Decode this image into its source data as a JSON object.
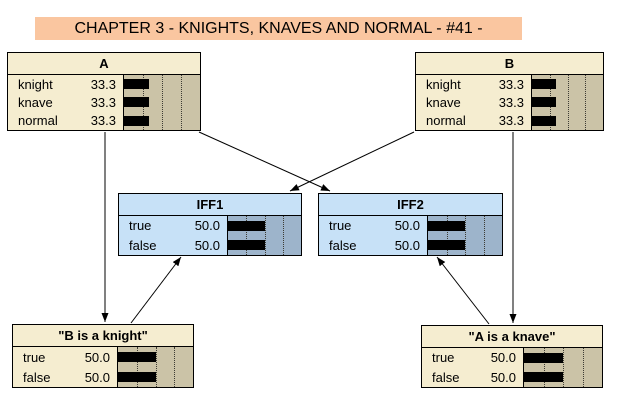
{
  "title": {
    "text": "CHAPTER 3 - KNIGHTS, KNAVES AND NORMAL - #41 -"
  },
  "colors": {
    "title_bg": "#FAC6A0",
    "node_bg": "#F5EDD0",
    "node_bar_area_bg": "#CBC3A7",
    "iff_node_bg": "#C7E1F7",
    "iff_bar_area_bg": "#9DB4CB",
    "bar": "#000000",
    "border": "#000000"
  },
  "nodes": {
    "a": {
      "title": "A",
      "rows": [
        {
          "label": "knight",
          "value": "33.3",
          "pct": 33.3
        },
        {
          "label": "knave",
          "value": "33.3",
          "pct": 33.3
        },
        {
          "label": "normal",
          "value": "33.3",
          "pct": 33.3
        }
      ]
    },
    "b": {
      "title": "B",
      "rows": [
        {
          "label": "knight",
          "value": "33.3",
          "pct": 33.3
        },
        {
          "label": "knave",
          "value": "33.3",
          "pct": 33.3
        },
        {
          "label": "normal",
          "value": "33.3",
          "pct": 33.3
        }
      ]
    },
    "iff1": {
      "title": "IFF1",
      "rows": [
        {
          "label": "true",
          "value": "50.0",
          "pct": 50
        },
        {
          "label": "false",
          "value": "50.0",
          "pct": 50
        }
      ]
    },
    "iff2": {
      "title": "IFF2",
      "rows": [
        {
          "label": "true",
          "value": "50.0",
          "pct": 50
        },
        {
          "label": "false",
          "value": "50.0",
          "pct": 50
        }
      ]
    },
    "b_is_a_knight": {
      "title": "\"B is a knight\"",
      "rows": [
        {
          "label": "true",
          "value": "50.0",
          "pct": 50
        },
        {
          "label": "false",
          "value": "50.0",
          "pct": 50
        }
      ]
    },
    "a_is_a_knave": {
      "title": "\"A is a knave\"",
      "rows": [
        {
          "label": "true",
          "value": "50.0",
          "pct": 50
        },
        {
          "label": "false",
          "value": "50.0",
          "pct": 50
        }
      ]
    }
  },
  "edges": [
    {
      "from": "A",
      "to": "\"B is a knight\""
    },
    {
      "from": "A",
      "to": "IFF2"
    },
    {
      "from": "B",
      "to": "IFF1"
    },
    {
      "from": "B",
      "to": "\"A is a knave\""
    },
    {
      "from": "\"B is a knight\"",
      "to": "IFF1"
    },
    {
      "from": "\"A is a knave\"",
      "to": "IFF2"
    }
  ]
}
